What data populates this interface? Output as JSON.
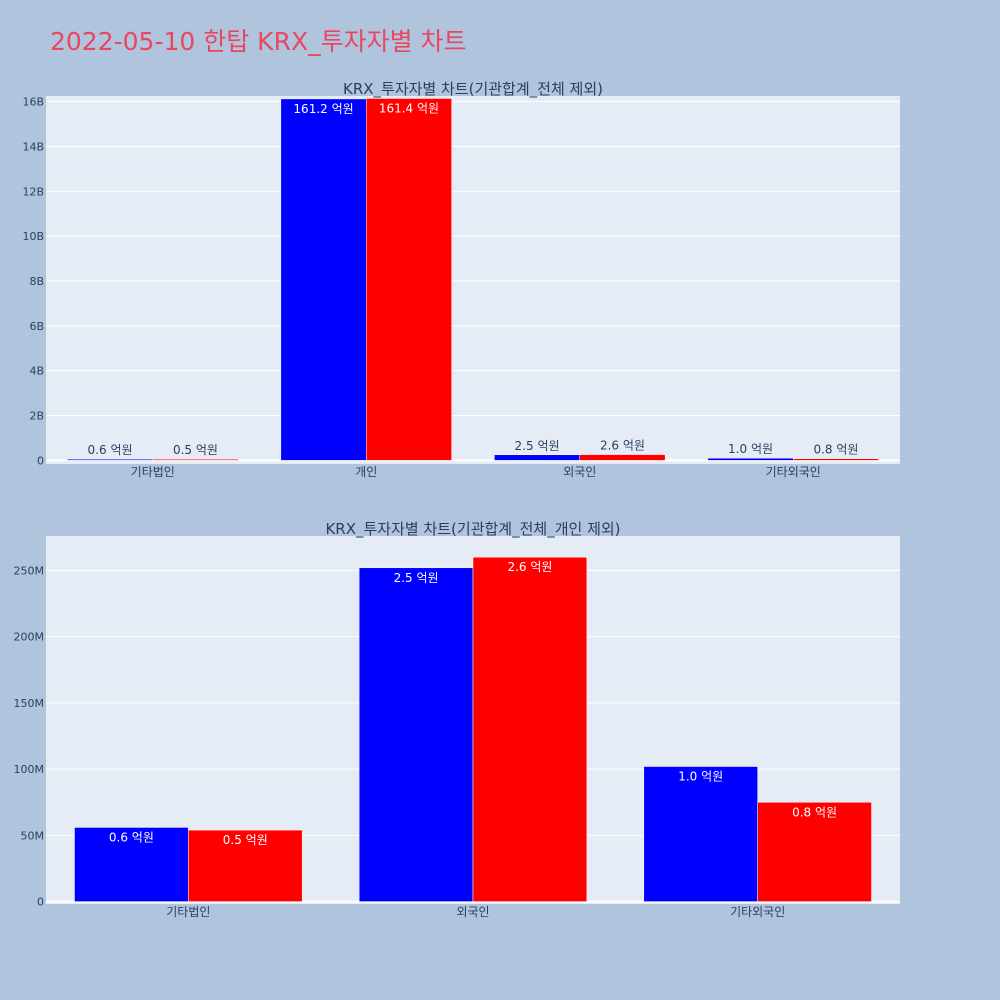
{
  "page": {
    "title": "2022-05-10 한탑 KRX_투자자별 차트"
  },
  "colors": {
    "series_a": "#0000ff",
    "series_b": "#ff0000",
    "plot_bg": "#e5ecf6",
    "page_bg": "#b0c4de",
    "title": "#e8475f"
  },
  "chart_data": [
    {
      "type": "bar",
      "title": "KRX_투자자별 차트(기관합계_전체 제외)",
      "categories": [
        "기타법인",
        "개인",
        "외국인",
        "기타외국인"
      ],
      "series": [
        {
          "values": [
            56000000,
            16120000000,
            252000000,
            102000000
          ],
          "labels": [
            "0.6 억원",
            "161.2 억원",
            "2.5 억원",
            "1.0 억원"
          ],
          "color": "#0000ff"
        },
        {
          "values": [
            54000000,
            16140000000,
            260000000,
            75000000
          ],
          "labels": [
            "0.5 억원",
            "161.4 억원",
            "2.6 억원",
            "0.8 억원"
          ],
          "color": "#ff0000"
        }
      ],
      "yticks": [
        {
          "v": 0,
          "label": "0"
        },
        {
          "v": 2000000000,
          "label": "2B"
        },
        {
          "v": 4000000000,
          "label": "4B"
        },
        {
          "v": 6000000000,
          "label": "6B"
        },
        {
          "v": 8000000000,
          "label": "8B"
        },
        {
          "v": 10000000000,
          "label": "10B"
        },
        {
          "v": 12000000000,
          "label": "12B"
        },
        {
          "v": 14000000000,
          "label": "14B"
        },
        {
          "v": 16000000000,
          "label": "16B"
        }
      ],
      "ylim": [
        -160000000,
        16250000000
      ],
      "grid": true
    },
    {
      "type": "bar",
      "title": "KRX_투자자별 차트(기관합계_전체_개인 제외)",
      "categories": [
        "기타법인",
        "외국인",
        "기타외국인"
      ],
      "series": [
        {
          "values": [
            56000000,
            252000000,
            102000000
          ],
          "labels": [
            "0.6 억원",
            "2.5 억원",
            "1.0 억원"
          ],
          "color": "#0000ff"
        },
        {
          "values": [
            54000000,
            260000000,
            75000000
          ],
          "labels": [
            "0.5 억원",
            "2.6 억원",
            "0.8 억원"
          ],
          "color": "#ff0000"
        }
      ],
      "yticks": [
        {
          "v": 0,
          "label": "0"
        },
        {
          "v": 50000000,
          "label": "50M"
        },
        {
          "v": 100000000,
          "label": "100M"
        },
        {
          "v": 150000000,
          "label": "150M"
        },
        {
          "v": 200000000,
          "label": "200M"
        },
        {
          "v": 250000000,
          "label": "250M"
        }
      ],
      "ylim": [
        -1800000,
        276000000
      ],
      "grid": true
    }
  ]
}
